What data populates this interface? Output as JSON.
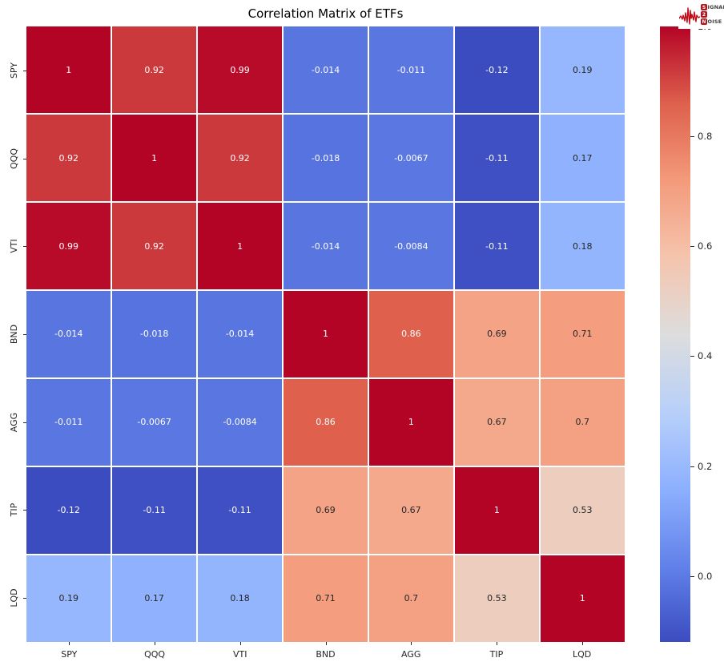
{
  "title": "Correlation Matrix of ETFs",
  "logo": {
    "name": "Signal 2 Noise",
    "line1_initial": "S",
    "line1_rest": "IGNAL",
    "line2_initial": "2",
    "line2_rest": "",
    "line3_initial": "N",
    "line3_rest": "OISE"
  },
  "chart_data": {
    "type": "heatmap",
    "title": "Correlation Matrix of ETFs",
    "x_labels": [
      "SPY",
      "QQQ",
      "VTI",
      "BND",
      "AGG",
      "TIP",
      "LQD"
    ],
    "y_labels": [
      "SPY",
      "QQQ",
      "VTI",
      "BND",
      "AGG",
      "TIP",
      "LQD"
    ],
    "matrix": [
      [
        1,
        0.92,
        0.99,
        -0.014,
        -0.011,
        -0.12,
        0.19
      ],
      [
        0.92,
        1,
        0.92,
        -0.018,
        -0.0067,
        -0.11,
        0.17
      ],
      [
        0.99,
        0.92,
        1,
        -0.014,
        -0.0084,
        -0.11,
        0.18
      ],
      [
        -0.014,
        -0.018,
        -0.014,
        1,
        0.86,
        0.69,
        0.71
      ],
      [
        -0.011,
        -0.0067,
        -0.0084,
        0.86,
        1,
        0.67,
        0.7
      ],
      [
        -0.12,
        -0.11,
        -0.11,
        0.69,
        0.67,
        1,
        0.53
      ],
      [
        0.19,
        0.17,
        0.18,
        0.71,
        0.7,
        0.53,
        1
      ]
    ],
    "cell_labels": [
      [
        "1",
        "0.92",
        "0.99",
        "-0.014",
        "-0.011",
        "-0.12",
        "0.19"
      ],
      [
        "0.92",
        "1",
        "0.92",
        "-0.018",
        "-0.0067",
        "-0.11",
        "0.17"
      ],
      [
        "0.99",
        "0.92",
        "1",
        "-0.014",
        "-0.0084",
        "-0.11",
        "0.18"
      ],
      [
        "-0.014",
        "-0.018",
        "-0.014",
        "1",
        "0.86",
        "0.69",
        "0.71"
      ],
      [
        "-0.011",
        "-0.0067",
        "-0.0084",
        "0.86",
        "1",
        "0.67",
        "0.7"
      ],
      [
        "-0.12",
        "-0.11",
        "-0.11",
        "0.69",
        "0.67",
        "1",
        "0.53"
      ],
      [
        "0.19",
        "0.17",
        "0.18",
        "0.71",
        "0.7",
        "0.53",
        "1"
      ]
    ],
    "colormap": "coolwarm",
    "vmin": -0.12,
    "vmax": 1.0,
    "grid_line_color": "#ffffff",
    "colorbar_position": "right",
    "colorbar_ticks": [
      {
        "value": 1.0,
        "label": "1.0"
      },
      {
        "value": 0.8,
        "label": "0.8"
      },
      {
        "value": 0.6,
        "label": "0.6"
      },
      {
        "value": 0.4,
        "label": "0.4"
      },
      {
        "value": 0.2,
        "label": "0.2"
      },
      {
        "value": 0.0,
        "label": "0.0"
      }
    ]
  },
  "colors": {
    "background": "#ffffff",
    "annot_dark": "#262626",
    "annot_light": "#ffffff",
    "axis_text": "#262626",
    "logo_red": "#c00a18",
    "logo_box_red": "#b5121c",
    "cmap_anchors": [
      {
        "t": 0.0,
        "hex": "#3b4cc0"
      },
      {
        "t": 0.125,
        "hex": "#6282ea"
      },
      {
        "t": 0.25,
        "hex": "#8db0fe"
      },
      {
        "t": 0.375,
        "hex": "#b8d0f9"
      },
      {
        "t": 0.5,
        "hex": "#dddddd"
      },
      {
        "t": 0.625,
        "hex": "#f5c4ad"
      },
      {
        "t": 0.75,
        "hex": "#f49a7b"
      },
      {
        "t": 0.875,
        "hex": "#de604d"
      },
      {
        "t": 1.0,
        "hex": "#b40426"
      }
    ]
  }
}
